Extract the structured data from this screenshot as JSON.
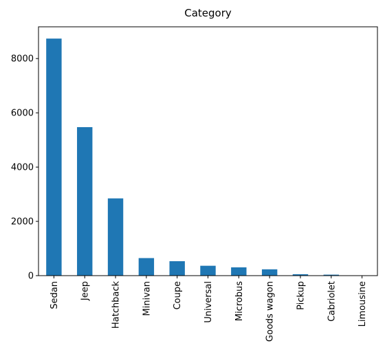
{
  "chart_data": {
    "type": "bar",
    "title": "Category",
    "xlabel": "",
    "ylabel": "",
    "categories": [
      "Sedan",
      "Jeep",
      "Hatchback",
      "Minivan",
      "Coupe",
      "Universal",
      "Microbus",
      "Goods wagon",
      "Pickup",
      "Cabriolet",
      "Limousine"
    ],
    "values": [
      8736,
      5473,
      2847,
      647,
      532,
      364,
      306,
      233,
      52,
      36,
      11
    ],
    "ylim": [
      0,
      9170
    ],
    "yticks": [
      0,
      2000,
      4000,
      6000,
      8000
    ],
    "ytick_labels": [
      "0",
      "2000",
      "4000",
      "6000",
      "8000"
    ],
    "bar_color": "#1f77b4",
    "grid": false,
    "legend": "none"
  }
}
